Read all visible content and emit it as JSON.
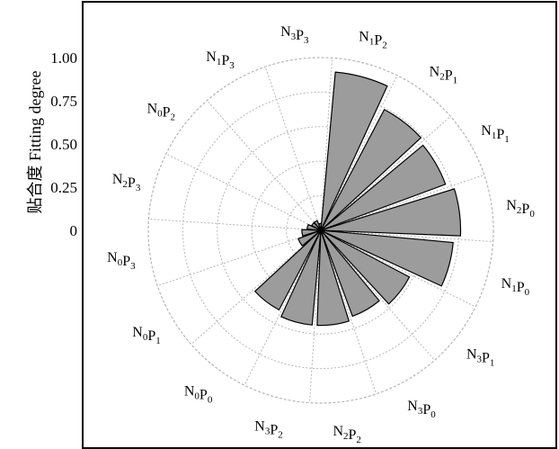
{
  "chart_data": {
    "type": "polar-bar",
    "ylabel": "贴合度 Fitting degree",
    "r_ticks": [
      "1.00",
      "0.75",
      "0.50",
      "0.25",
      "0"
    ],
    "r_tick_values": [
      1.0,
      0.75,
      0.5,
      0.25,
      0
    ],
    "r_max": 1.0,
    "grid": true,
    "categories": [
      {
        "name": "N1P2",
        "main": [
          "N",
          "P"
        ],
        "sub": [
          "1",
          "2"
        ]
      },
      {
        "name": "N2P1",
        "main": [
          "N",
          "P"
        ],
        "sub": [
          "2",
          "1"
        ]
      },
      {
        "name": "N1P1",
        "main": [
          "N",
          "P"
        ],
        "sub": [
          "1",
          "1"
        ]
      },
      {
        "name": "N2P0",
        "main": [
          "N",
          "P"
        ],
        "sub": [
          "2",
          "0"
        ]
      },
      {
        "name": "N1P0",
        "main": [
          "N",
          "P"
        ],
        "sub": [
          "1",
          "0"
        ]
      },
      {
        "name": "N3P1",
        "main": [
          "N",
          "P"
        ],
        "sub": [
          "3",
          "1"
        ]
      },
      {
        "name": "N3P0",
        "main": [
          "N",
          "P"
        ],
        "sub": [
          "3",
          "0"
        ]
      },
      {
        "name": "N2P2",
        "main": [
          "N",
          "P"
        ],
        "sub": [
          "2",
          "2"
        ]
      },
      {
        "name": "N3P2",
        "main": [
          "N",
          "P"
        ],
        "sub": [
          "3",
          "2"
        ]
      },
      {
        "name": "N0P0",
        "main": [
          "N",
          "P"
        ],
        "sub": [
          "0",
          "0"
        ]
      },
      {
        "name": "N0P1",
        "main": [
          "N",
          "P"
        ],
        "sub": [
          "0",
          "1"
        ]
      },
      {
        "name": "N0P3",
        "main": [
          "N",
          "P"
        ],
        "sub": [
          "0",
          "3"
        ]
      },
      {
        "name": "N2P3",
        "main": [
          "N",
          "P"
        ],
        "sub": [
          "2",
          "3"
        ]
      },
      {
        "name": "N0P2",
        "main": [
          "N",
          "P"
        ],
        "sub": [
          "0",
          "2"
        ]
      },
      {
        "name": "N1P3",
        "main": [
          "N",
          "P"
        ],
        "sub": [
          "1",
          "3"
        ]
      },
      {
        "name": "N3P3",
        "main": [
          "N",
          "P"
        ],
        "sub": [
          "3",
          "3"
        ]
      }
    ],
    "values": [
      0.92,
      0.79,
      0.77,
      0.81,
      0.77,
      0.58,
      0.53,
      0.55,
      0.55,
      0.52,
      0.14,
      0.11,
      0.08,
      0.06,
      0.06,
      0.04
    ],
    "colors": {
      "bar_fill": "#9c9c9c",
      "bar_stroke": "#000000",
      "grid": "#b5b5b5",
      "frame": "#000000"
    }
  }
}
